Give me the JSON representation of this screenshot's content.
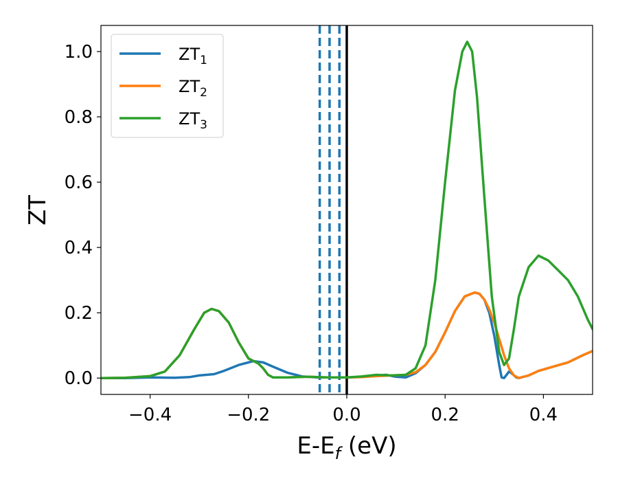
{
  "chart_data": {
    "type": "line",
    "xlabel": "E-E",
    "xlabel_subscript": "f",
    "xlabel_unit": " (eV)",
    "ylabel": "ZT",
    "xlim": [
      -0.5,
      0.5
    ],
    "ylim": [
      -0.05,
      1.08
    ],
    "xticks": [
      -0.4,
      -0.2,
      0.0,
      0.2,
      0.4
    ],
    "xtick_labels": [
      "−0.4",
      "−0.2",
      "0.0",
      "0.2",
      "0.4"
    ],
    "yticks": [
      0.0,
      0.2,
      0.4,
      0.6,
      0.8,
      1.0
    ],
    "ytick_labels": [
      "0.0",
      "0.2",
      "0.4",
      "0.6",
      "0.8",
      "1.0"
    ],
    "grid": false,
    "legend_position": "top-left",
    "vlines": [
      {
        "x": 0.0,
        "style": "solid",
        "color": "#000000"
      },
      {
        "x": -0.055,
        "style": "dashed",
        "color": "#1f77b4"
      },
      {
        "x": -0.035,
        "style": "dashed",
        "color": "#1f77b4"
      },
      {
        "x": -0.015,
        "style": "dashed",
        "color": "#1f77b4"
      }
    ],
    "series": [
      {
        "name": "ZT",
        "subscript": "1",
        "color": "#1f77b4",
        "points": [
          [
            -0.5,
            0.0
          ],
          [
            -0.45,
            0.0
          ],
          [
            -0.4,
            0.002
          ],
          [
            -0.35,
            0.001
          ],
          [
            -0.32,
            0.003
          ],
          [
            -0.3,
            0.008
          ],
          [
            -0.27,
            0.012
          ],
          [
            -0.25,
            0.022
          ],
          [
            -0.22,
            0.04
          ],
          [
            -0.19,
            0.052
          ],
          [
            -0.17,
            0.048
          ],
          [
            -0.15,
            0.035
          ],
          [
            -0.12,
            0.016
          ],
          [
            -0.09,
            0.005
          ],
          [
            -0.06,
            0.002
          ],
          [
            -0.03,
            0.002
          ],
          [
            0.0,
            0.002
          ],
          [
            0.03,
            0.004
          ],
          [
            0.06,
            0.008
          ],
          [
            0.08,
            0.01
          ],
          [
            0.1,
            0.004
          ],
          [
            0.12,
            0.002
          ],
          [
            0.14,
            0.015
          ],
          [
            0.16,
            0.04
          ],
          [
            0.18,
            0.08
          ],
          [
            0.2,
            0.14
          ],
          [
            0.22,
            0.205
          ],
          [
            0.24,
            0.25
          ],
          [
            0.26,
            0.262
          ],
          [
            0.27,
            0.258
          ],
          [
            0.28,
            0.24
          ],
          [
            0.29,
            0.2
          ],
          [
            0.3,
            0.13
          ],
          [
            0.31,
            0.04
          ],
          [
            0.315,
            0.002
          ],
          [
            0.32,
            0.0
          ],
          [
            0.325,
            0.01
          ],
          [
            0.33,
            0.02
          ],
          [
            0.335,
            0.015
          ],
          [
            0.345,
            0.002
          ],
          [
            0.35,
            0.0
          ],
          [
            0.37,
            0.008
          ],
          [
            0.39,
            0.022
          ],
          [
            0.42,
            0.035
          ],
          [
            0.45,
            0.048
          ],
          [
            0.48,
            0.07
          ],
          [
            0.5,
            0.083
          ]
        ]
      },
      {
        "name": "ZT",
        "subscript": "2",
        "color": "#ff7f0e",
        "points": [
          [
            -0.5,
            0.0
          ],
          [
            -0.45,
            0.001
          ],
          [
            -0.4,
            0.006
          ],
          [
            -0.37,
            0.02
          ],
          [
            -0.34,
            0.07
          ],
          [
            -0.31,
            0.15
          ],
          [
            -0.29,
            0.2
          ],
          [
            -0.275,
            0.212
          ],
          [
            -0.26,
            0.205
          ],
          [
            -0.24,
            0.17
          ],
          [
            -0.22,
            0.11
          ],
          [
            -0.2,
            0.06
          ],
          [
            -0.18,
            0.045
          ],
          [
            -0.17,
            0.03
          ],
          [
            -0.16,
            0.01
          ],
          [
            -0.15,
            0.002
          ],
          [
            -0.12,
            0.002
          ],
          [
            -0.08,
            0.004
          ],
          [
            -0.04,
            0.002
          ],
          [
            0.0,
            0.002
          ],
          [
            0.03,
            0.003
          ],
          [
            0.06,
            0.006
          ],
          [
            0.09,
            0.008
          ],
          [
            0.12,
            0.01
          ],
          [
            0.14,
            0.018
          ],
          [
            0.16,
            0.04
          ],
          [
            0.18,
            0.08
          ],
          [
            0.2,
            0.14
          ],
          [
            0.22,
            0.205
          ],
          [
            0.24,
            0.25
          ],
          [
            0.26,
            0.262
          ],
          [
            0.27,
            0.258
          ],
          [
            0.28,
            0.24
          ],
          [
            0.29,
            0.21
          ],
          [
            0.3,
            0.17
          ],
          [
            0.31,
            0.12
          ],
          [
            0.32,
            0.07
          ],
          [
            0.33,
            0.03
          ],
          [
            0.34,
            0.008
          ],
          [
            0.35,
            0.0
          ],
          [
            0.37,
            0.008
          ],
          [
            0.39,
            0.022
          ],
          [
            0.42,
            0.035
          ],
          [
            0.45,
            0.048
          ],
          [
            0.48,
            0.07
          ],
          [
            0.5,
            0.083
          ]
        ]
      },
      {
        "name": "ZT",
        "subscript": "3",
        "color": "#2ca02c",
        "points": [
          [
            -0.5,
            0.0
          ],
          [
            -0.45,
            0.001
          ],
          [
            -0.4,
            0.006
          ],
          [
            -0.37,
            0.02
          ],
          [
            -0.34,
            0.07
          ],
          [
            -0.31,
            0.15
          ],
          [
            -0.29,
            0.2
          ],
          [
            -0.275,
            0.212
          ],
          [
            -0.26,
            0.205
          ],
          [
            -0.24,
            0.17
          ],
          [
            -0.22,
            0.11
          ],
          [
            -0.2,
            0.06
          ],
          [
            -0.18,
            0.045
          ],
          [
            -0.17,
            0.03
          ],
          [
            -0.16,
            0.01
          ],
          [
            -0.15,
            0.002
          ],
          [
            -0.12,
            0.002
          ],
          [
            -0.08,
            0.004
          ],
          [
            -0.04,
            0.002
          ],
          [
            0.0,
            0.002
          ],
          [
            0.03,
            0.005
          ],
          [
            0.06,
            0.01
          ],
          [
            0.09,
            0.008
          ],
          [
            0.12,
            0.01
          ],
          [
            0.14,
            0.03
          ],
          [
            0.16,
            0.1
          ],
          [
            0.18,
            0.3
          ],
          [
            0.2,
            0.6
          ],
          [
            0.22,
            0.88
          ],
          [
            0.235,
            1.0
          ],
          [
            0.245,
            1.03
          ],
          [
            0.255,
            1.0
          ],
          [
            0.265,
            0.86
          ],
          [
            0.28,
            0.55
          ],
          [
            0.295,
            0.25
          ],
          [
            0.31,
            0.08
          ],
          [
            0.32,
            0.04
          ],
          [
            0.33,
            0.06
          ],
          [
            0.34,
            0.15
          ],
          [
            0.35,
            0.25
          ],
          [
            0.37,
            0.34
          ],
          [
            0.39,
            0.375
          ],
          [
            0.41,
            0.36
          ],
          [
            0.43,
            0.33
          ],
          [
            0.45,
            0.3
          ],
          [
            0.47,
            0.25
          ],
          [
            0.49,
            0.18
          ],
          [
            0.5,
            0.15
          ]
        ]
      }
    ]
  }
}
